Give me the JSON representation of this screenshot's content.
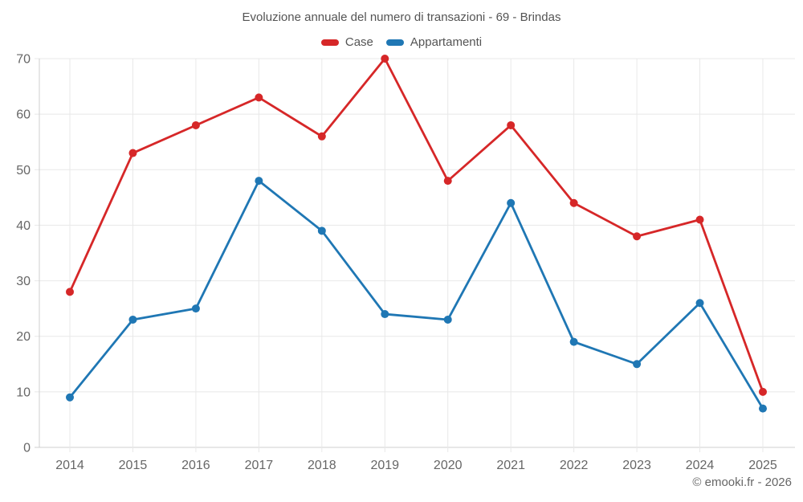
{
  "title": "Evoluzione annuale del numero di transazioni - 69 - Brindas",
  "legend": [
    {
      "label": "Case",
      "color": "#d62728"
    },
    {
      "label": "Appartamenti",
      "color": "#1f77b4"
    }
  ],
  "footer": "© emooki.fr - 2026",
  "colors": {
    "grid": "#e8e8e8",
    "axis": "#cfcfcf",
    "tick_text": "#666666",
    "title_text": "#545454",
    "case_red": "#d62728",
    "appartamenti_blue": "#1f77b4"
  },
  "chart_data": {
    "type": "line",
    "title": "Evoluzione annuale del numero di transazioni - 69 - Brindas",
    "categories": [
      "2014",
      "2015",
      "2016",
      "2017",
      "2018",
      "2019",
      "2020",
      "2021",
      "2022",
      "2023",
      "2024",
      "2025"
    ],
    "series": [
      {
        "name": "Case",
        "color": "#d62728",
        "values": [
          28,
          53,
          58,
          63,
          56,
          70,
          48,
          58,
          44,
          38,
          41,
          10
        ]
      },
      {
        "name": "Appartamenti",
        "color": "#1f77b4",
        "values": [
          9,
          23,
          25,
          48,
          39,
          24,
          23,
          44,
          19,
          15,
          26,
          7
        ]
      }
    ],
    "xlabel": "",
    "ylabel": "",
    "ylim": [
      0,
      70
    ],
    "ytick_step": 10,
    "grid": true,
    "legend_position": "top",
    "marker": "circle",
    "annotations": []
  }
}
